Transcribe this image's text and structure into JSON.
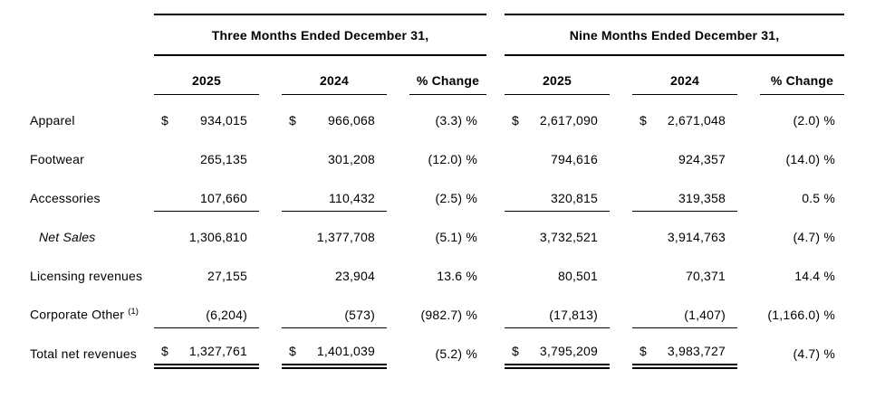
{
  "page": {
    "background": "#ffffff",
    "text_color": "#000000"
  },
  "table": {
    "groups": [
      {
        "title": "Three Months Ended December 31,",
        "columns": [
          "2025",
          "2024",
          "% Change"
        ]
      },
      {
        "title": "Nine Months Ended December 31,",
        "columns": [
          "2025",
          "2024",
          "% Change"
        ]
      }
    ],
    "rows": [
      {
        "label": "Apparel",
        "d1a": "$",
        "v1a": "934,015",
        "d1b": "$",
        "v1b": "966,068",
        "p1": "(3.3) %",
        "d2a": "$",
        "v2a": "2,617,090",
        "d2b": "$",
        "v2b": "2,671,048",
        "p2": "(2.0) %"
      },
      {
        "label": "Footwear",
        "v1a": "265,135",
        "v1b": "301,208",
        "p1": "(12.0) %",
        "v2a": "794,616",
        "v2b": "924,357",
        "p2": "(14.0) %"
      },
      {
        "label": "Accessories",
        "v1a": "107,660",
        "v1b": "110,432",
        "p1": "(2.5) %",
        "v2a": "320,815",
        "v2b": "319,358",
        "p2": "0.5 %"
      },
      {
        "label": "Net Sales",
        "v1a": "1,306,810",
        "v1b": "1,377,708",
        "p1": "(5.1) %",
        "v2a": "3,732,521",
        "v2b": "3,914,763",
        "p2": "(4.7) %"
      },
      {
        "label": "Licensing revenues",
        "v1a": "27,155",
        "v1b": "23,904",
        "p1": "13.6 %",
        "v2a": "80,501",
        "v2b": "70,371",
        "p2": "14.4 %"
      },
      {
        "label": "Corporate Other",
        "footnote": "(1)",
        "v1a": "(6,204)",
        "v1b": "(573)",
        "p1": "(982.7) %",
        "v2a": "(17,813)",
        "v2b": "(1,407)",
        "p2": "(1,166.0) %"
      },
      {
        "label": "Total net revenues",
        "d1a": "$",
        "v1a": "1,327,761",
        "d1b": "$",
        "v1b": "1,401,039",
        "p1": "(5.2) %",
        "d2a": "$",
        "v2a": "3,795,209",
        "d2b": "$",
        "v2b": "3,983,727",
        "p2": "(4.7) %"
      }
    ]
  }
}
